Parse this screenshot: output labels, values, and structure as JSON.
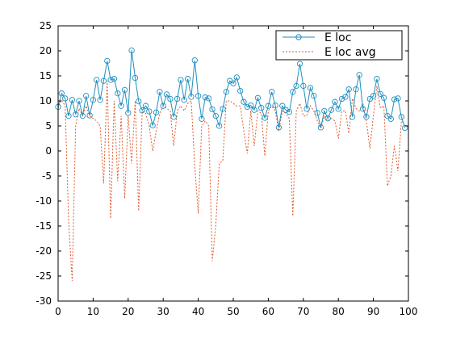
{
  "chart_data": {
    "type": "line",
    "xlim": [
      0,
      100
    ],
    "ylim": [
      -30,
      25
    ],
    "xticks": [
      0,
      10,
      20,
      30,
      40,
      50,
      60,
      70,
      80,
      90,
      100
    ],
    "yticks": [
      -30,
      -25,
      -20,
      -15,
      -10,
      -5,
      0,
      5,
      10,
      15,
      20,
      25
    ],
    "legend_position": "top-right",
    "grid": false,
    "colors": {
      "e_loc": "#1f8fbf",
      "e_loc_avg": "#e2582c"
    },
    "series": [
      {
        "name": "E loc",
        "style": "solid line with open circle markers",
        "x": [
          0,
          1,
          2,
          3,
          4,
          5,
          6,
          7,
          8,
          9,
          10,
          11,
          12,
          13,
          14,
          15,
          16,
          17,
          18,
          19,
          20,
          21,
          22,
          23,
          24,
          25,
          26,
          27,
          28,
          29,
          30,
          31,
          32,
          33,
          34,
          35,
          36,
          37,
          38,
          39,
          40,
          41,
          42,
          43,
          44,
          45,
          46,
          47,
          48,
          49,
          50,
          51,
          52,
          53,
          54,
          55,
          56,
          57,
          58,
          59,
          60,
          61,
          62,
          63,
          64,
          65,
          66,
          67,
          68,
          69,
          70,
          71,
          72,
          73,
          74,
          75,
          76,
          77,
          78,
          79,
          80,
          81,
          82,
          83,
          84,
          85,
          86,
          87,
          88,
          89,
          90,
          91,
          92,
          93,
          94,
          95,
          96,
          97,
          98,
          99
        ],
        "y": [
          8.8,
          11.5,
          10.5,
          7.0,
          10.2,
          7.3,
          10.0,
          7.0,
          11.0,
          7.1,
          10.2,
          14.2,
          10.2,
          14.0,
          18.0,
          14.2,
          14.4,
          11.5,
          9.0,
          12.2,
          7.6,
          20.1,
          14.6,
          9.9,
          8.1,
          9.0,
          7.9,
          5.1,
          7.7,
          11.8,
          9.0,
          11.3,
          10.4,
          6.8,
          10.4,
          14.2,
          10.2,
          14.4,
          10.8,
          18.1,
          11.0,
          6.4,
          10.7,
          10.5,
          8.3,
          7.0,
          5.0,
          8.4,
          11.8,
          14.0,
          13.5,
          14.7,
          12.0,
          9.8,
          8.8,
          9.1,
          8.2,
          10.6,
          8.6,
          6.6,
          9.0,
          11.8,
          9.1,
          4.7,
          9.0,
          8.2,
          7.8,
          11.8,
          13.0,
          17.4,
          13.0,
          8.4,
          12.6,
          11.0,
          7.6,
          4.7,
          8.0,
          6.5,
          8.2,
          9.8,
          8.4,
          10.4,
          10.8,
          12.3,
          6.8,
          12.3,
          15.2,
          8.4,
          6.8,
          10.4,
          11.0,
          14.4,
          11.4,
          10.6,
          7.0,
          6.4,
          10.3,
          10.5,
          6.8,
          4.6
        ]
      },
      {
        "name": "E loc avg",
        "style": "dotted line",
        "x": [
          0,
          1,
          2,
          3,
          4,
          5,
          6,
          7,
          8,
          9,
          10,
          11,
          12,
          13,
          14,
          15,
          16,
          17,
          18,
          19,
          20,
          21,
          22,
          23,
          24,
          25,
          26,
          27,
          28,
          29,
          30,
          31,
          32,
          33,
          34,
          35,
          36,
          37,
          38,
          39,
          40,
          41,
          42,
          43,
          44,
          45,
          46,
          47,
          48,
          49,
          50,
          51,
          52,
          53,
          54,
          55,
          56,
          57,
          58,
          59,
          60,
          61,
          62,
          63,
          64,
          65,
          66,
          67,
          68,
          69,
          70,
          71,
          72,
          73,
          74,
          75,
          76,
          77,
          78,
          79,
          80,
          81,
          82,
          83,
          84,
          85,
          86,
          87,
          88,
          89,
          90,
          91,
          92,
          93,
          94,
          95,
          96,
          97,
          98,
          99
        ],
        "y": [
          8.5,
          10.2,
          9.0,
          -14.0,
          -26.0,
          5.0,
          8.5,
          7.0,
          9.0,
          7.0,
          6.5,
          6.0,
          5.0,
          -6.5,
          14.0,
          -13.5,
          10.0,
          -6.0,
          7.0,
          -9.5,
          7.0,
          -2.5,
          10.0,
          -12.0,
          8.0,
          7.5,
          5.0,
          0.0,
          4.0,
          7.5,
          9.0,
          8.5,
          8.0,
          1.0,
          8.0,
          9.0,
          8.0,
          9.5,
          10.0,
          -3.0,
          -12.5,
          5.0,
          6.0,
          5.0,
          -22.0,
          -15.0,
          -2.5,
          -2.0,
          10.0,
          10.0,
          9.5,
          9.0,
          9.0,
          4.0,
          -0.5,
          8.0,
          1.0,
          8.0,
          7.5,
          -1.0,
          8.0,
          9.0,
          8.0,
          4.0,
          8.0,
          7.5,
          6.5,
          -13.0,
          8.0,
          9.5,
          7.0,
          7.0,
          9.0,
          8.0,
          6.0,
          4.5,
          7.0,
          6.0,
          6.5,
          6.0,
          2.5,
          8.0,
          8.0,
          3.5,
          10.5,
          8.5,
          8.0,
          9.5,
          6.0,
          0.5,
          7.0,
          13.0,
          8.5,
          9.0,
          -7.0,
          -5.0,
          1.0,
          -4.0,
          6.0,
          5.5
        ]
      }
    ]
  }
}
